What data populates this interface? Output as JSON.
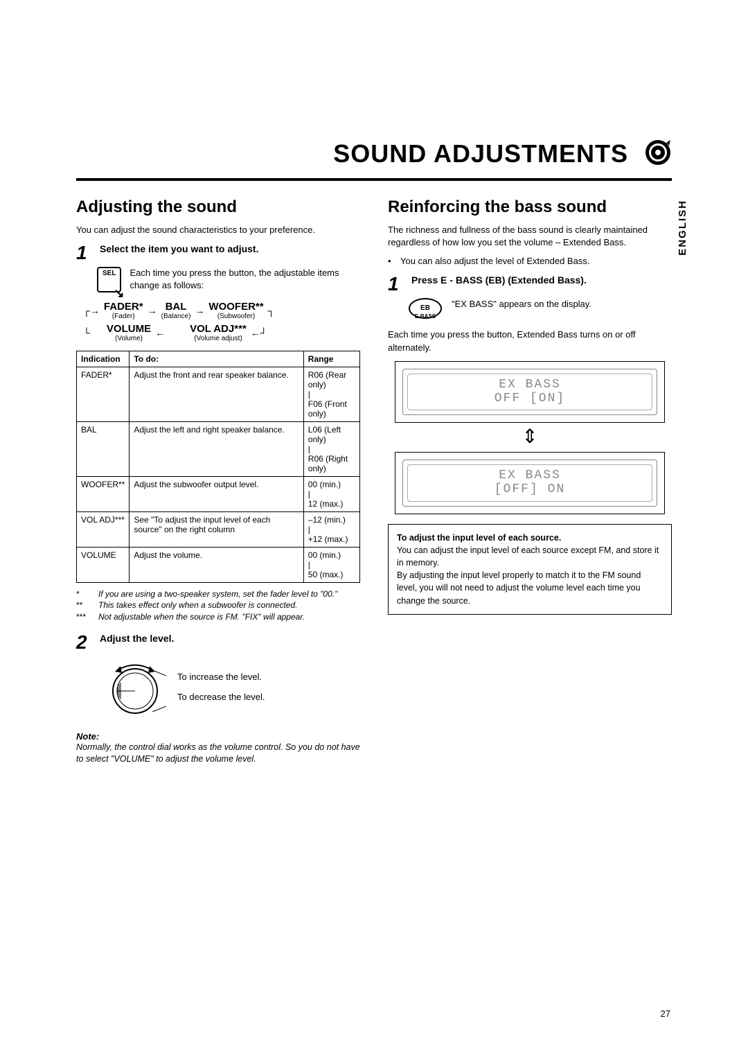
{
  "pageTitle": "SOUND ADJUSTMENTS",
  "langTab": "ENGLISH",
  "pageNumber": "27",
  "left": {
    "heading": "Adjusting the sound",
    "intro": "You can adjust the sound characteristics to your preference.",
    "step1Num": "1",
    "step1Label": "Select the item you want to adjust.",
    "selBtn": "SEL",
    "selDesc": "Each time you press the button, the adjustable items change as follows:",
    "flow": {
      "fader": "FADER*",
      "faderSub": "(Fader)",
      "bal": "BAL",
      "balSub": "(Balance)",
      "woofer": "WOOFER**",
      "wooferSub": "(Subwoofer)",
      "volume": "VOLUME",
      "volumeSub": "(Volume)",
      "voladj": "VOL ADJ***",
      "voladjSub": "(Volume adjust)"
    },
    "table": {
      "headers": [
        "Indication",
        "To do:",
        "Range"
      ],
      "rows": [
        [
          "FADER*",
          "Adjust the front and rear speaker balance.",
          "R06 (Rear only)\n|\nF06 (Front only)"
        ],
        [
          "BAL",
          "Adjust the left and right speaker balance.",
          "L06 (Left only)\n|\nR06 (Right only)"
        ],
        [
          "WOOFER**",
          "Adjust the subwoofer output level.",
          "00 (min.)\n|\n12 (max.)"
        ],
        [
          "VOL ADJ***",
          "See \"To adjust the input level of each source\" on the right column",
          "–12 (min.)\n|\n+12 (max.)"
        ],
        [
          "VOLUME",
          "Adjust the volume.",
          "00 (min.)\n|\n50 (max.)"
        ]
      ]
    },
    "footnotes": [
      [
        "*",
        "If you are using a two-speaker system, set the fader level to \"00.\""
      ],
      [
        "**",
        "This takes effect only when a subwoofer is connected."
      ],
      [
        "***",
        "Not adjustable when the source is FM. \"FIX\" will appear."
      ]
    ],
    "step2Num": "2",
    "step2Label": "Adjust the level.",
    "dialInc": "To increase the level.",
    "dialDec": "To decrease the level.",
    "noteHead": "Note:",
    "noteBody": "Normally, the control dial works as the volume control. So you do not have to select \"VOLUME\" to adjust the volume level."
  },
  "right": {
    "heading": "Reinforcing the bass sound",
    "intro": "The richness and fullness of the bass sound is clearly maintained regardless of how low you set the volume – Extended Bass.",
    "bullet": "You can also adjust the level of Extended Bass.",
    "step1Num": "1",
    "step1Label": "Press E - BASS (EB) (Extended Bass).",
    "ebBtn": "EB",
    "ebSub": "E-BASS",
    "ebDesc": "\"EX BASS\" appears on the display.",
    "toggleText": "Each time you press the button, Extended Bass turns on or off alternately.",
    "lcd1a": "EX BASS",
    "lcd1b": "OFF  [ON]",
    "lcd2a": "EX BASS",
    "lcd2b": "[OFF]  ON",
    "infoHead": "To adjust the input level of each source.",
    "infoBody": "You can adjust the input level of each source except FM, and store it in memory.\nBy adjusting the input level properly to match it to the FM sound level, you will not need to adjust the volume level each time you change the source."
  }
}
